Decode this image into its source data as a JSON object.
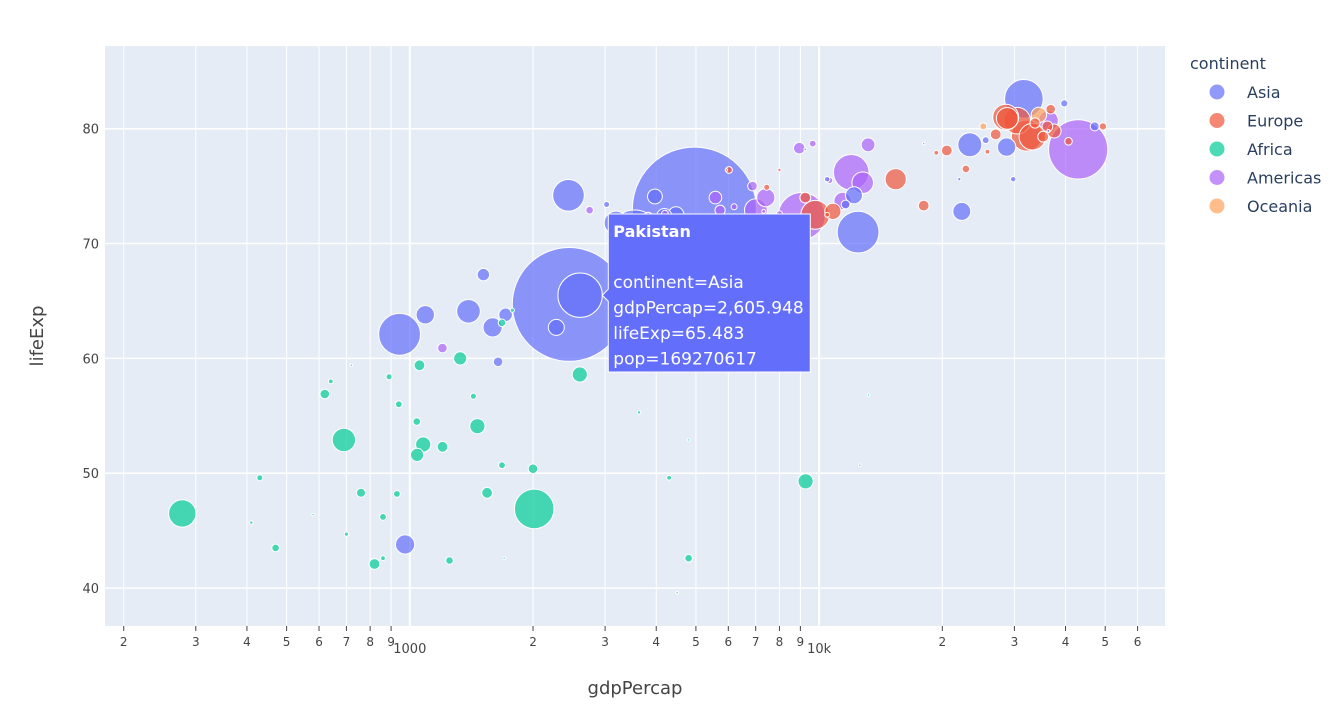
{
  "chart_data": {
    "type": "scatter",
    "subtype": "bubble",
    "xlabel": "gdpPercap",
    "ylabel": "lifeExp",
    "x_scale": "log",
    "xlim": [
      180,
      70000
    ],
    "ylim": [
      36.7,
      87.2
    ],
    "grid": true,
    "legend_title": "continent",
    "legend_position": "right",
    "x_major_ticks": [
      {
        "value": 1000,
        "label": "1000"
      },
      {
        "value": 10000,
        "label": "10k"
      }
    ],
    "x_minor_ticks": [
      {
        "value": 200,
        "label": "2"
      },
      {
        "value": 300,
        "label": "3"
      },
      {
        "value": 400,
        "label": "4"
      },
      {
        "value": 500,
        "label": "5"
      },
      {
        "value": 600,
        "label": "6"
      },
      {
        "value": 700,
        "label": "7"
      },
      {
        "value": 800,
        "label": "8"
      },
      {
        "value": 900,
        "label": "9"
      },
      {
        "value": 2000,
        "label": "2"
      },
      {
        "value": 3000,
        "label": "3"
      },
      {
        "value": 4000,
        "label": "4"
      },
      {
        "value": 5000,
        "label": "5"
      },
      {
        "value": 6000,
        "label": "6"
      },
      {
        "value": 7000,
        "label": "7"
      },
      {
        "value": 8000,
        "label": "8"
      },
      {
        "value": 9000,
        "label": "9"
      },
      {
        "value": 20000,
        "label": "2"
      },
      {
        "value": 30000,
        "label": "3"
      },
      {
        "value": 40000,
        "label": "4"
      },
      {
        "value": 50000,
        "label": "5"
      },
      {
        "value": 60000,
        "label": "6"
      }
    ],
    "y_ticks": [
      {
        "value": 40,
        "label": "40"
      },
      {
        "value": 50,
        "label": "50"
      },
      {
        "value": 60,
        "label": "60"
      },
      {
        "value": 70,
        "label": "70"
      },
      {
        "value": 80,
        "label": "80"
      }
    ],
    "series": [
      {
        "name": "Asia",
        "color": "#636efa",
        "points": [
          [
            4959,
            73.0,
            1318683096
          ],
          [
            2452,
            64.7,
            1110396331
          ],
          [
            2606,
            65.5,
            169270617
          ],
          [
            3541,
            70.7,
            223547000
          ],
          [
            2442,
            74.2,
            85262356
          ],
          [
            31656,
            82.6,
            127467972
          ],
          [
            23348,
            78.6,
            49044790
          ],
          [
            47143,
            80.2,
            6980412
          ],
          [
            39725,
            82.2,
            4553009
          ],
          [
            28718,
            78.4,
            28901790
          ],
          [
            22316,
            72.8,
            27601038
          ],
          [
            12452,
            71.0,
            150448339
          ],
          [
            12172,
            74.2,
            24821286
          ],
          [
            11606,
            73.4,
            6667147
          ],
          [
            7458,
            70.6,
            88000000
          ],
          [
            3190,
            71.8,
            47761980
          ],
          [
            1391,
            64.1,
            47798986
          ],
          [
            1091,
            63.8,
            28901790
          ],
          [
            944,
            62.1,
            150448339
          ],
          [
            1593,
            62.7,
            31889923
          ],
          [
            1714,
            63.8,
            16000000
          ],
          [
            1513,
            67.3,
            13000000
          ],
          [
            4185,
            72.4,
            19314747
          ],
          [
            4471,
            72.5,
            22000000
          ],
          [
            3970,
            74.1,
            19000000
          ],
          [
            2280,
            62.7,
            22211743
          ],
          [
            1643,
            59.7,
            8000000
          ],
          [
            974,
            43.8,
            31889923
          ],
          [
            3025,
            73.4,
            3000000
          ],
          [
            6223,
            71.4,
            54000000
          ],
          [
            29796,
            75.6,
            2505559
          ],
          [
            25523,
            79.0,
            4000000
          ],
          [
            10461,
            75.6,
            2500000
          ],
          [
            9253,
            78.2,
            700000
          ],
          [
            36319,
            79.8,
            800000
          ],
          [
            22000,
            75.6,
            1000000
          ]
        ]
      },
      {
        "name": "Europe",
        "color": "#ef553b",
        "points": [
          [
            32170,
            79.4,
            82400996
          ],
          [
            30470,
            80.7,
            61083916
          ],
          [
            28570,
            81.0,
            58147733
          ],
          [
            33203,
            79.3,
            60776238
          ],
          [
            28821,
            80.9,
            40448191
          ],
          [
            36126,
            80.2,
            10000000
          ],
          [
            36797,
            81.7,
            8000000
          ],
          [
            33692,
            80.5,
            9000000
          ],
          [
            35278,
            79.3,
            10000000
          ],
          [
            37506,
            79.8,
            16570613
          ],
          [
            49357,
            80.2,
            4627926
          ],
          [
            40676,
            78.9,
            5000000
          ],
          [
            27000,
            79.5,
            10000000
          ],
          [
            20510,
            78.1,
            10000000
          ],
          [
            15390,
            75.6,
            38518241
          ],
          [
            18008,
            73.3,
            10000000
          ],
          [
            22833,
            76.5,
            5000000
          ],
          [
            25768,
            78.0,
            2000000
          ],
          [
            9786,
            72.5,
            71158647
          ],
          [
            10808,
            72.8,
            22276056
          ],
          [
            7446,
            74.9,
            3000000
          ],
          [
            6025,
            76.4,
            4000000
          ],
          [
            9253,
            74.0,
            10000000
          ],
          [
            10461,
            72.5,
            2000000
          ],
          [
            19329,
            77.9,
            2000000
          ],
          [
            8000,
            76.4,
            1000000
          ],
          [
            5937,
            76.4,
            500000
          ]
        ]
      },
      {
        "name": "Africa",
        "color": "#00cc96",
        "points": [
          [
            278,
            46.5,
            64606759
          ],
          [
            690,
            52.9,
            47000000
          ],
          [
            2013,
            46.9,
            135031164
          ],
          [
            9270,
            49.3,
            20000000
          ],
          [
            2602,
            58.6,
            20000000
          ],
          [
            1078,
            52.5,
            20000000
          ],
          [
            1042,
            51.6,
            15000000
          ],
          [
            1463,
            54.1,
            20000000
          ],
          [
            1545,
            48.3,
            10000000
          ],
          [
            1328,
            60.0,
            15000000
          ],
          [
            1056,
            59.4,
            10000000
          ],
          [
            1202,
            52.3,
            10000000
          ],
          [
            4300,
            49.6,
            2000000
          ],
          [
            430,
            49.6,
            3000000
          ],
          [
            470,
            43.5,
            5000000
          ],
          [
            620,
            56.9,
            8000000
          ],
          [
            760,
            48.3,
            7000000
          ],
          [
            820,
            42.1,
            10000000
          ],
          [
            930,
            48.2,
            4000000
          ],
          [
            890,
            58.4,
            3000000
          ],
          [
            940,
            56.0,
            4000000
          ],
          [
            1040,
            54.5,
            5000000
          ],
          [
            1250,
            42.4,
            5000000
          ],
          [
            1680,
            50.7,
            4000000
          ],
          [
            2000,
            50.4,
            8000000
          ],
          [
            1680,
            63.1,
            5000000
          ],
          [
            4800,
            42.6,
            5000000
          ],
          [
            860,
            46.2,
            4000000
          ],
          [
            4800,
            52.9,
            200000
          ],
          [
            3630,
            55.3,
            1000000
          ],
          [
            641,
            58.0,
            2000000
          ],
          [
            700,
            44.7,
            1500000
          ],
          [
            860,
            42.6,
            2000000
          ],
          [
            1430,
            56.7,
            3000000
          ],
          [
            1780,
            64.2,
            1500000
          ],
          [
            410,
            45.7,
            1000000
          ],
          [
            580,
            46.4,
            500000
          ],
          [
            1700,
            42.6,
            500000
          ],
          [
            12570,
            50.7,
            500000
          ],
          [
            13200,
            56.8,
            400000
          ],
          [
            4500,
            39.6,
            300000
          ],
          [
            720,
            59.4,
            400000
          ]
        ]
      },
      {
        "name": "Americas",
        "color": "#ab63fa",
        "points": [
          [
            42952,
            78.2,
            301139947
          ],
          [
            9066,
            72.4,
            190010647
          ],
          [
            11977,
            76.2,
            108700891
          ],
          [
            7007,
            72.9,
            44227550
          ],
          [
            12779,
            75.3,
            40301927
          ],
          [
            36319,
            80.7,
            33390141
          ],
          [
            7409,
            74.0,
            28674757
          ],
          [
            11416,
            73.7,
            26084662
          ],
          [
            13172,
            78.6,
            16284741
          ],
          [
            8948,
            78.3,
            11416987
          ],
          [
            5581,
            74.0,
            13755680
          ],
          [
            6873,
            75.0,
            8000000
          ],
          [
            5729,
            72.9,
            9000000
          ],
          [
            3822,
            72.3,
            8000000
          ],
          [
            5186,
            70.3,
            7000000
          ],
          [
            2749,
            72.9,
            5000000
          ],
          [
            1201,
            60.9,
            8000000
          ],
          [
            7000,
            71.5,
            5000000
          ],
          [
            9645,
            78.7,
            4000000
          ],
          [
            10611,
            75.5,
            3500000
          ],
          [
            8000,
            72.6,
            3000000
          ],
          [
            7321,
            72.8,
            1300000
          ],
          [
            18008,
            78.7,
            300000
          ],
          [
            3500,
            71.2,
            5000000
          ],
          [
            4200,
            72.6,
            4000000
          ],
          [
            6200,
            73.2,
            3000000
          ]
        ]
      },
      {
        "name": "Oceania",
        "color": "#ffa15a",
        "points": [
          [
            34435,
            81.2,
            20434176
          ],
          [
            25185,
            80.2,
            4115771
          ]
        ]
      }
    ],
    "hover": {
      "title": "Pakistan",
      "lines": [
        "continent=Asia",
        "gdpPercap=2,605.948",
        "lifeExp=65.483",
        "pop=169270617"
      ]
    }
  }
}
